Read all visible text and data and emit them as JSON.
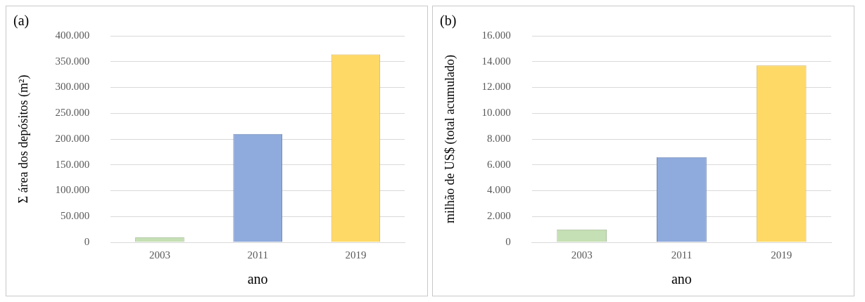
{
  "chart_data": [
    {
      "type": "bar",
      "title": "(a)",
      "xlabel": "ano",
      "ylabel": "Σ área dos depósitos (m²)",
      "categories": [
        "2003",
        "2011",
        "2019"
      ],
      "values": [
        10000,
        210000,
        364000
      ],
      "colors": [
        "#c5e0b4",
        "#8faadc",
        "#ffd966"
      ],
      "ylim": [
        0,
        400000
      ],
      "yticks": [
        0,
        {
          "value": 50000,
          "label": "50.000"
        },
        {
          "value": 100000,
          "label": "100.000"
        },
        {
          "value": 150000,
          "label": "150.000"
        },
        {
          "value": 200000,
          "label": "200.000"
        },
        {
          "value": 250000,
          "label": "250.000"
        },
        {
          "value": 300000,
          "label": "300.000"
        },
        {
          "value": 350000,
          "label": "350.000"
        },
        {
          "value": 400000,
          "label": "400.000"
        }
      ],
      "grid": "y",
      "legend": false
    },
    {
      "type": "bar",
      "title": "(b)",
      "xlabel": "ano",
      "ylabel": "milhão de US$ (total acumulado)",
      "categories": [
        "2003",
        "2011",
        "2019"
      ],
      "values": [
        1000,
        6600,
        13700
      ],
      "colors": [
        "#c5e0b4",
        "#8faadc",
        "#ffd966"
      ],
      "ylim": [
        0,
        16000
      ],
      "yticks": [
        0,
        {
          "value": 2000,
          "label": "2.000"
        },
        {
          "value": 4000,
          "label": "4.000"
        },
        {
          "value": 6000,
          "label": "6.000"
        },
        {
          "value": 8000,
          "label": "8.000"
        },
        {
          "value": 10000,
          "label": "10.000"
        },
        {
          "value": 12000,
          "label": "12.000"
        },
        {
          "value": 14000,
          "label": "14.000"
        },
        {
          "value": 16000,
          "label": "16.000"
        }
      ],
      "grid": "y",
      "legend": false
    }
  ]
}
